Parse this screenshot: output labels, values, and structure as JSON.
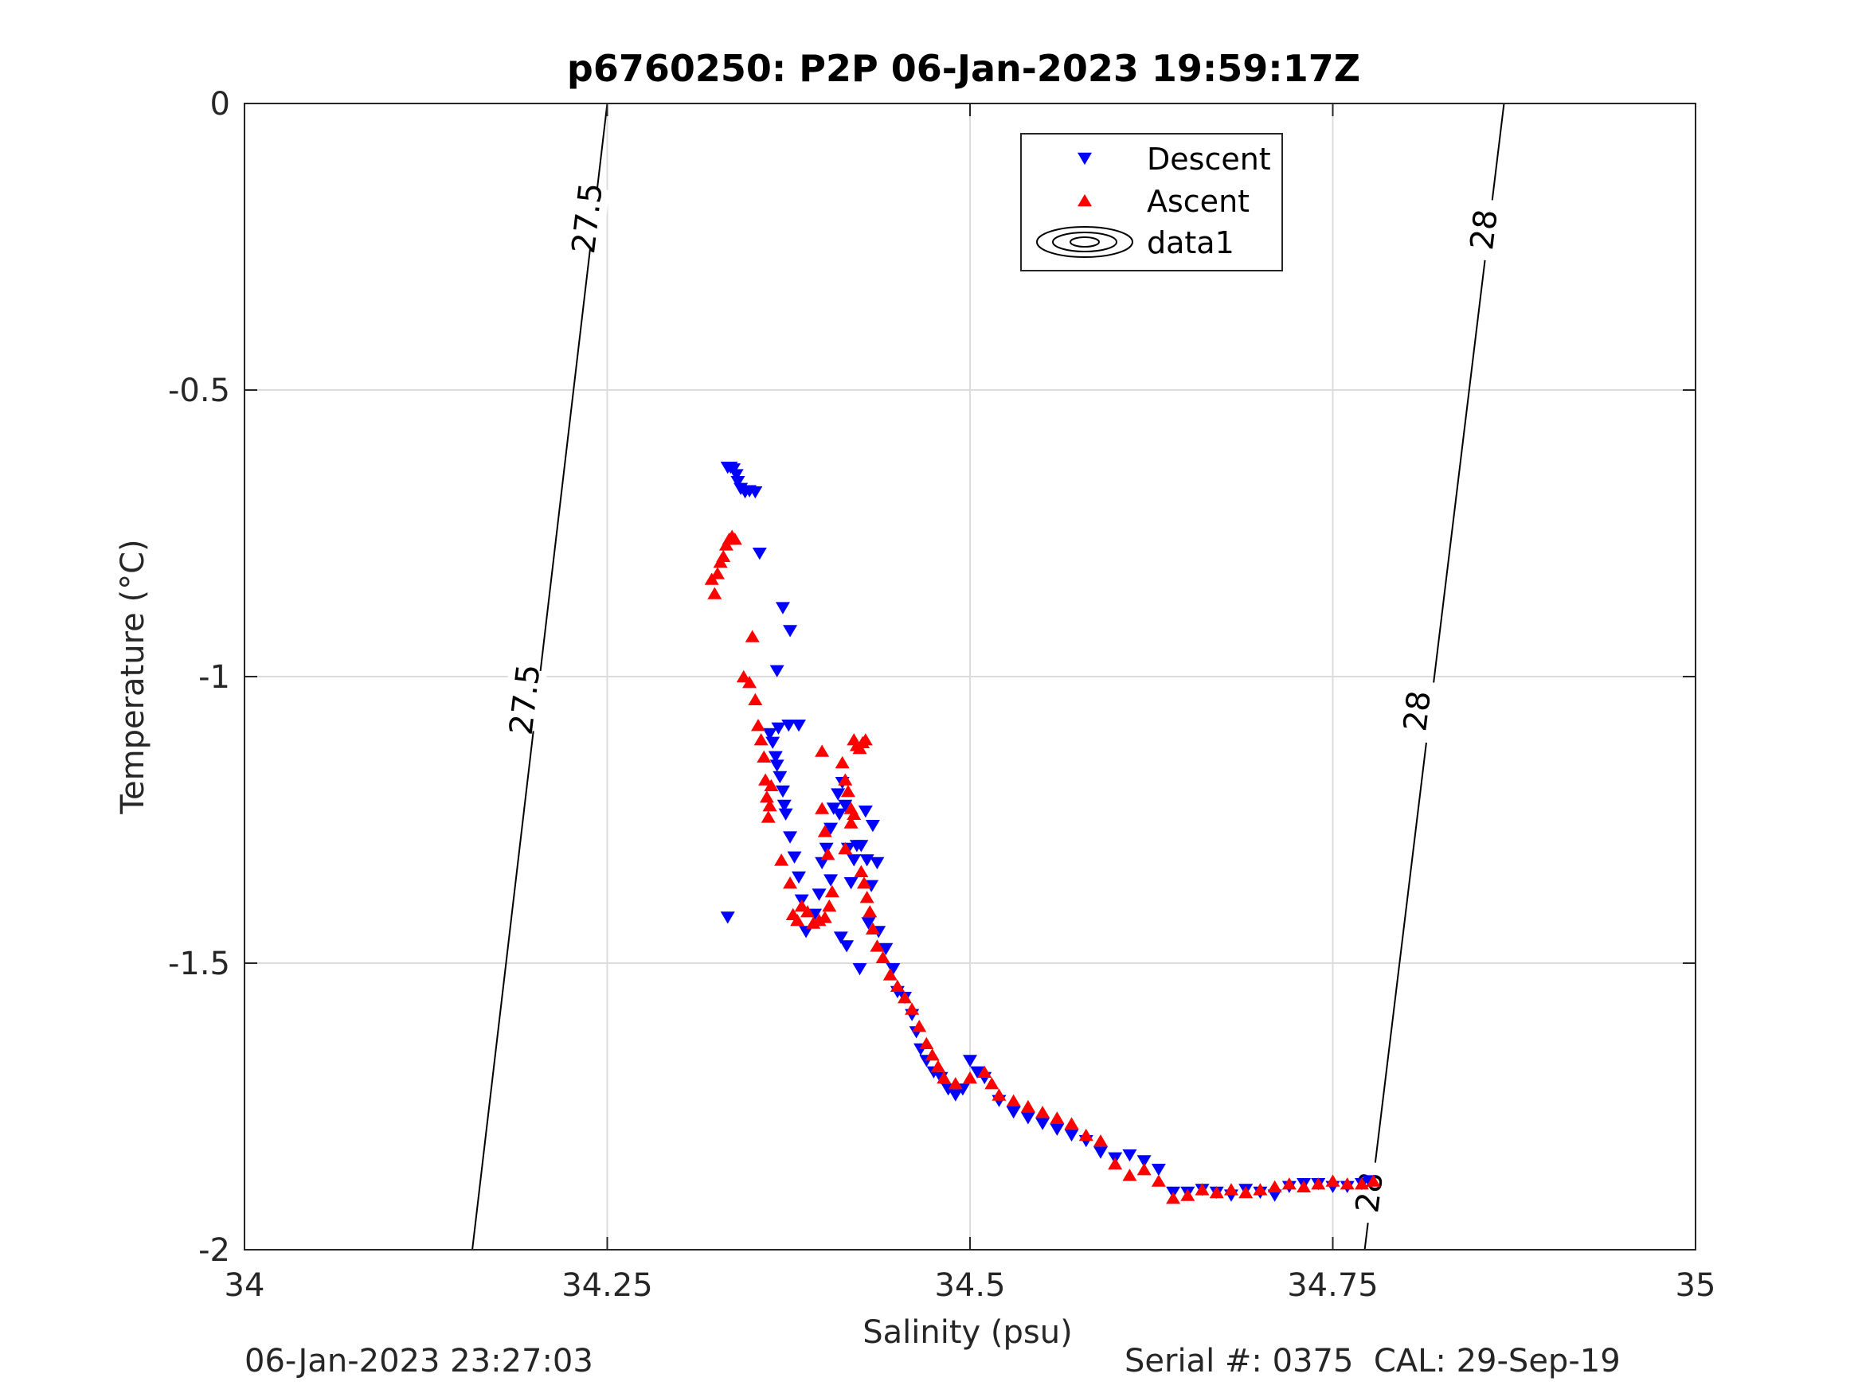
{
  "chart_data": {
    "type": "scatter",
    "title": "p6760250: P2P 06-Jan-2023 19:59:17Z",
    "xlabel": "Salinity (psu)",
    "ylabel": "Temperature (°C)",
    "xlim": [
      34,
      35
    ],
    "ylim": [
      -2,
      0
    ],
    "xticks": [
      34,
      34.25,
      34.5,
      34.75,
      35
    ],
    "xtick_labels": [
      "34",
      "34.25",
      "34.5",
      "34.75",
      "35"
    ],
    "yticks": [
      0,
      -0.5,
      -1,
      -1.5,
      -2
    ],
    "ytick_labels": [
      "0",
      "-0.5",
      "-1",
      "-1.5",
      "-2"
    ],
    "grid": true,
    "legend_position": "top-center",
    "legend": [
      "Descent",
      "Ascent",
      "data1"
    ],
    "series": [
      {
        "name": "Descent",
        "marker": "triangle-down",
        "color": "#0000ff",
        "points": [
          [
            34.333,
            -0.635
          ],
          [
            34.335,
            -0.635
          ],
          [
            34.337,
            -0.638
          ],
          [
            34.339,
            -0.648
          ],
          [
            34.34,
            -0.66
          ],
          [
            34.342,
            -0.672
          ],
          [
            34.345,
            -0.678
          ],
          [
            34.348,
            -0.676
          ],
          [
            34.352,
            -0.678
          ],
          [
            34.355,
            -0.785
          ],
          [
            34.371,
            -0.88
          ],
          [
            34.376,
            -0.92
          ],
          [
            34.367,
            -0.99
          ],
          [
            34.362,
            -1.1
          ],
          [
            34.368,
            -1.09
          ],
          [
            34.364,
            -1.115
          ],
          [
            34.366,
            -1.14
          ],
          [
            34.367,
            -1.155
          ],
          [
            34.369,
            -1.175
          ],
          [
            34.371,
            -1.2
          ],
          [
            34.372,
            -1.225
          ],
          [
            34.373,
            -1.24
          ],
          [
            34.376,
            -1.28
          ],
          [
            34.379,
            -1.315
          ],
          [
            34.382,
            -1.35
          ],
          [
            34.384,
            -1.39
          ],
          [
            34.387,
            -1.445
          ],
          [
            34.375,
            -1.085
          ],
          [
            34.382,
            -1.085
          ],
          [
            34.393,
            -1.415
          ],
          [
            34.396,
            -1.38
          ],
          [
            34.398,
            -1.325
          ],
          [
            34.401,
            -1.3
          ],
          [
            34.404,
            -1.265
          ],
          [
            34.406,
            -1.23
          ],
          [
            34.409,
            -1.205
          ],
          [
            34.412,
            -1.185
          ],
          [
            34.404,
            -1.355
          ],
          [
            34.41,
            -1.24
          ],
          [
            34.414,
            -1.225
          ],
          [
            34.416,
            -1.3
          ],
          [
            34.418,
            -1.36
          ],
          [
            34.42,
            -1.32
          ],
          [
            34.422,
            -1.295
          ],
          [
            34.425,
            -1.295
          ],
          [
            34.429,
            -1.32
          ],
          [
            34.432,
            -1.365
          ],
          [
            34.428,
            -1.235
          ],
          [
            34.433,
            -1.26
          ],
          [
            34.436,
            -1.325
          ],
          [
            34.333,
            -1.42
          ],
          [
            34.411,
            -1.455
          ],
          [
            34.415,
            -1.47
          ],
          [
            34.424,
            -1.51
          ],
          [
            34.43,
            -1.43
          ],
          [
            34.437,
            -1.445
          ],
          [
            34.442,
            -1.475
          ],
          [
            34.447,
            -1.51
          ],
          [
            34.45,
            -1.55
          ],
          [
            34.455,
            -1.56
          ],
          [
            34.46,
            -1.59
          ],
          [
            34.463,
            -1.62
          ],
          [
            34.466,
            -1.65
          ],
          [
            34.47,
            -1.67
          ],
          [
            34.475,
            -1.69
          ],
          [
            34.48,
            -1.7
          ],
          [
            34.485,
            -1.72
          ],
          [
            34.49,
            -1.73
          ],
          [
            34.495,
            -1.72
          ],
          [
            34.5,
            -1.67
          ],
          [
            34.505,
            -1.69
          ],
          [
            34.51,
            -1.7
          ],
          [
            34.52,
            -1.74
          ],
          [
            34.53,
            -1.76
          ],
          [
            34.54,
            -1.77
          ],
          [
            34.55,
            -1.78
          ],
          [
            34.56,
            -1.79
          ],
          [
            34.57,
            -1.8
          ],
          [
            34.58,
            -1.81
          ],
          [
            34.59,
            -1.83
          ],
          [
            34.6,
            -1.84
          ],
          [
            34.61,
            -1.835
          ],
          [
            34.62,
            -1.845
          ],
          [
            34.63,
            -1.86
          ],
          [
            34.64,
            -1.9
          ],
          [
            34.65,
            -1.9
          ],
          [
            34.66,
            -1.895
          ],
          [
            34.67,
            -1.9
          ],
          [
            34.68,
            -1.905
          ],
          [
            34.69,
            -1.895
          ],
          [
            34.7,
            -1.9
          ],
          [
            34.71,
            -1.905
          ],
          [
            34.72,
            -1.89
          ],
          [
            34.73,
            -1.885
          ],
          [
            34.74,
            -1.885
          ],
          [
            34.75,
            -1.89
          ],
          [
            34.76,
            -1.89
          ],
          [
            34.77,
            -1.885
          ],
          [
            34.775,
            -1.88
          ]
        ]
      },
      {
        "name": "Ascent",
        "marker": "triangle-up",
        "color": "#ff0000",
        "points": [
          [
            34.322,
            -0.83
          ],
          [
            34.324,
            -0.855
          ],
          [
            34.326,
            -0.82
          ],
          [
            34.328,
            -0.8
          ],
          [
            34.33,
            -0.79
          ],
          [
            34.332,
            -0.77
          ],
          [
            34.334,
            -0.76
          ],
          [
            34.336,
            -0.755
          ],
          [
            34.338,
            -0.76
          ],
          [
            34.35,
            -0.93
          ],
          [
            34.344,
            -1.0
          ],
          [
            34.348,
            -1.01
          ],
          [
            34.352,
            -1.04
          ],
          [
            34.354,
            -1.085
          ],
          [
            34.356,
            -1.11
          ],
          [
            34.358,
            -1.14
          ],
          [
            34.359,
            -1.18
          ],
          [
            34.36,
            -1.21
          ],
          [
            34.361,
            -1.245
          ],
          [
            34.362,
            -1.225
          ],
          [
            34.363,
            -1.19
          ],
          [
            34.37,
            -1.32
          ],
          [
            34.376,
            -1.36
          ],
          [
            34.378,
            -1.415
          ],
          [
            34.381,
            -1.425
          ],
          [
            34.384,
            -1.4
          ],
          [
            34.388,
            -1.41
          ],
          [
            34.392,
            -1.43
          ],
          [
            34.396,
            -1.425
          ],
          [
            34.4,
            -1.42
          ],
          [
            34.403,
            -1.4
          ],
          [
            34.405,
            -1.375
          ],
          [
            34.402,
            -1.31
          ],
          [
            34.4,
            -1.27
          ],
          [
            34.398,
            -1.23
          ],
          [
            34.398,
            -1.13
          ],
          [
            34.412,
            -1.15
          ],
          [
            34.414,
            -1.18
          ],
          [
            34.416,
            -1.2
          ],
          [
            34.418,
            -1.23
          ],
          [
            34.42,
            -1.24
          ],
          [
            34.42,
            -1.11
          ],
          [
            34.422,
            -1.12
          ],
          [
            34.424,
            -1.125
          ],
          [
            34.426,
            -1.115
          ],
          [
            34.428,
            -1.11
          ],
          [
            34.425,
            -1.34
          ],
          [
            34.427,
            -1.36
          ],
          [
            34.429,
            -1.385
          ],
          [
            34.431,
            -1.41
          ],
          [
            34.418,
            -1.255
          ],
          [
            34.414,
            -1.3
          ],
          [
            34.433,
            -1.44
          ],
          [
            34.436,
            -1.47
          ],
          [
            34.44,
            -1.49
          ],
          [
            34.445,
            -1.52
          ],
          [
            34.45,
            -1.54
          ],
          [
            34.455,
            -1.56
          ],
          [
            34.46,
            -1.58
          ],
          [
            34.465,
            -1.61
          ],
          [
            34.47,
            -1.64
          ],
          [
            34.474,
            -1.66
          ],
          [
            34.478,
            -1.68
          ],
          [
            34.482,
            -1.7
          ],
          [
            34.49,
            -1.71
          ],
          [
            34.5,
            -1.7
          ],
          [
            34.51,
            -1.69
          ],
          [
            34.515,
            -1.71
          ],
          [
            34.52,
            -1.73
          ],
          [
            34.53,
            -1.74
          ],
          [
            34.54,
            -1.75
          ],
          [
            34.55,
            -1.76
          ],
          [
            34.56,
            -1.77
          ],
          [
            34.57,
            -1.78
          ],
          [
            34.58,
            -1.8
          ],
          [
            34.59,
            -1.81
          ],
          [
            34.6,
            -1.85
          ],
          [
            34.61,
            -1.87
          ],
          [
            34.62,
            -1.86
          ],
          [
            34.63,
            -1.88
          ],
          [
            34.64,
            -1.91
          ],
          [
            34.65,
            -1.905
          ],
          [
            34.66,
            -1.895
          ],
          [
            34.67,
            -1.9
          ],
          [
            34.68,
            -1.895
          ],
          [
            34.69,
            -1.9
          ],
          [
            34.7,
            -1.895
          ],
          [
            34.71,
            -1.89
          ],
          [
            34.72,
            -1.885
          ],
          [
            34.73,
            -1.89
          ],
          [
            34.74,
            -1.885
          ],
          [
            34.75,
            -1.88
          ],
          [
            34.76,
            -1.885
          ],
          [
            34.77,
            -1.885
          ],
          [
            34.778,
            -1.88
          ]
        ]
      }
    ],
    "contours": [
      {
        "level": "27.5",
        "points": [
          [
            34.25,
            0
          ],
          [
            34.157,
            -2
          ]
        ],
        "labels": [
          {
            "text": "27.5",
            "at": [
              34.236,
              -0.2
            ]
          },
          {
            "text": "27.5",
            "at": [
              34.193,
              -1.04
            ]
          }
        ]
      },
      {
        "level": "28",
        "points": [
          [
            34.868,
            0
          ],
          [
            34.772,
            -2
          ]
        ],
        "labels": [
          {
            "text": "28",
            "at": [
              34.854,
              -0.22
            ]
          },
          {
            "text": "28",
            "at": [
              34.808,
              -1.06
            ]
          },
          {
            "text": "28",
            "at": [
              34.775,
              -1.9
            ]
          }
        ]
      }
    ]
  },
  "footer": {
    "left": "06-Jan-2023 23:27:03",
    "right": "Serial #: 0375  CAL: 29-Sep-19"
  }
}
